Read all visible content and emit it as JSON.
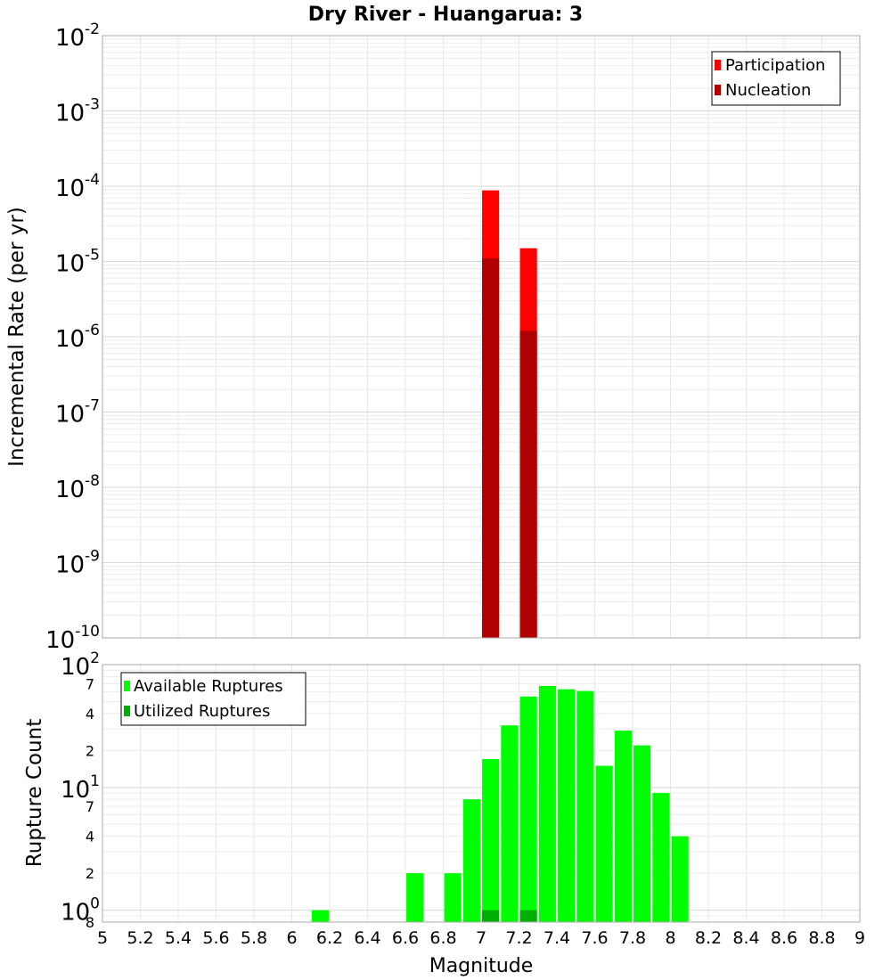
{
  "chart_data": [
    {
      "type": "bar",
      "title": "Dry River - Huangarua: 3",
      "xlabel": "",
      "ylabel": "Incremental Rate (per yr)",
      "yscale": "log",
      "ylim": [
        1e-10,
        0.01
      ],
      "xlim": [
        5,
        9
      ],
      "bar_width": 0.09,
      "y_tick_labels": [
        {
          "base": "10",
          "exp": "-2",
          "value": 0.01
        },
        {
          "base": "10",
          "exp": "-3",
          "value": 0.001
        },
        {
          "base": "10",
          "exp": "-4",
          "value": 0.0001
        },
        {
          "base": "10",
          "exp": "-5",
          "value": 1e-05
        },
        {
          "base": "10",
          "exp": "-6",
          "value": 1e-06
        },
        {
          "base": "10",
          "exp": "-7",
          "value": 1e-07
        },
        {
          "base": "10",
          "exp": "-8",
          "value": 1e-08
        },
        {
          "base": "10",
          "exp": "-9",
          "value": 1e-09
        },
        {
          "base": "10",
          "exp": "-10",
          "value": 1e-10
        }
      ],
      "legend_position": "top-right",
      "grid": true,
      "series": [
        {
          "name": "Participation",
          "color": "#ff0000",
          "points": [
            {
              "x": 7.05,
              "y": 8.8e-05
            },
            {
              "x": 7.25,
              "y": 1.5e-05
            }
          ]
        },
        {
          "name": "Nucleation",
          "color": "#b00000",
          "points": [
            {
              "x": 7.05,
              "y": 1.1e-05
            },
            {
              "x": 7.25,
              "y": 1.2e-06
            }
          ]
        }
      ]
    },
    {
      "type": "bar",
      "title": "",
      "xlabel": "Magnitude",
      "ylabel": "Rupture Count",
      "yscale": "log",
      "ylim": [
        0.8,
        100
      ],
      "xlim": [
        5,
        9
      ],
      "bar_width": 0.09,
      "x_tick_labels": [
        "5",
        "5.2",
        "5.4",
        "5.6",
        "5.8",
        "6",
        "6.2",
        "6.4",
        "6.6",
        "6.8",
        "7",
        "7.2",
        "7.4",
        "7.6",
        "7.8",
        "8",
        "8.2",
        "8.4",
        "8.6",
        "8.8",
        "9"
      ],
      "y_major_labels": [
        {
          "base": "10",
          "exp": "2",
          "value": 100
        },
        {
          "base": "10",
          "exp": "1",
          "value": 10
        },
        {
          "base": "10",
          "exp": "0",
          "value": 1
        }
      ],
      "y_minor_labels": [
        {
          "label": "7",
          "value": 70
        },
        {
          "label": "4",
          "value": 40
        },
        {
          "label": "2",
          "value": 20
        },
        {
          "label": "7",
          "value": 7
        },
        {
          "label": "4",
          "value": 4
        },
        {
          "label": "2",
          "value": 2
        },
        {
          "label": "8",
          "value": 0.8
        }
      ],
      "legend_position": "top-left",
      "grid": true,
      "series": [
        {
          "name": "Available Ruptures",
          "color": "#00ff00",
          "points": [
            {
              "x": 6.15,
              "y": 1
            },
            {
              "x": 6.65,
              "y": 2
            },
            {
              "x": 6.85,
              "y": 2
            },
            {
              "x": 6.95,
              "y": 8
            },
            {
              "x": 7.05,
              "y": 17
            },
            {
              "x": 7.15,
              "y": 32
            },
            {
              "x": 7.25,
              "y": 55
            },
            {
              "x": 7.35,
              "y": 67
            },
            {
              "x": 7.45,
              "y": 63
            },
            {
              "x": 7.55,
              "y": 61
            },
            {
              "x": 7.65,
              "y": 15
            },
            {
              "x": 7.75,
              "y": 29
            },
            {
              "x": 7.85,
              "y": 22
            },
            {
              "x": 7.95,
              "y": 9
            },
            {
              "x": 8.05,
              "y": 4
            }
          ]
        },
        {
          "name": "Utilized Ruptures",
          "color": "#00b000",
          "points": [
            {
              "x": 7.05,
              "y": 1
            },
            {
              "x": 7.25,
              "y": 1
            }
          ]
        }
      ]
    }
  ]
}
